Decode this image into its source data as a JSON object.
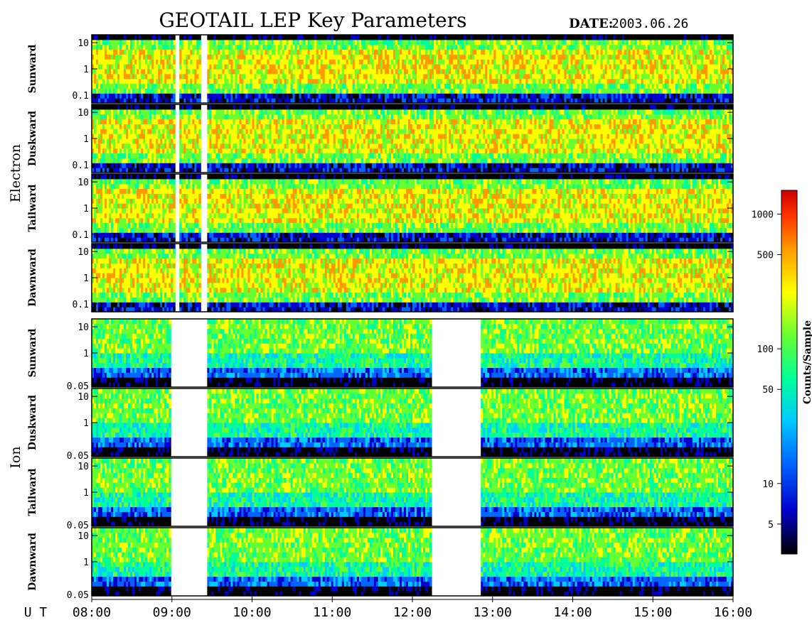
{
  "chart_data": {
    "type": "heatmap",
    "title": "GEOTAIL LEP Key Parameters",
    "date_label": "DATE:",
    "date_value": "2003.06.26",
    "x_axis_label": "U T",
    "x_ticks": [
      "08:00",
      "09:00",
      "10:00",
      "11:00",
      "12:00",
      "13:00",
      "14:00",
      "15:00",
      "16:00"
    ],
    "x_range_hours": [
      8,
      16
    ],
    "colorbar": {
      "label": "Counts/Sample",
      "scale": "log",
      "range": [
        3,
        1500
      ],
      "ticks": [
        5,
        10,
        50,
        100,
        500,
        1000
      ],
      "colors": [
        "#000000",
        "#0000cc",
        "#0066ff",
        "#00ccff",
        "#00ff99",
        "#66ff33",
        "#ffff00",
        "#ff9900",
        "#ff3300",
        "#cc0000"
      ]
    },
    "groups": [
      {
        "name": "Electron",
        "y_ticks": [
          "10",
          "1",
          "0.1"
        ],
        "y_tick_values": [
          10,
          1,
          0.1
        ],
        "y_range": [
          0.05,
          20
        ],
        "panels": [
          "Sunward",
          "Duskward",
          "Tailward",
          "Dawnward"
        ]
      },
      {
        "name": "Ion",
        "y_ticks": [
          "10",
          "1",
          "0.05"
        ],
        "y_tick_values": [
          10,
          1,
          0.05
        ],
        "y_range": [
          0.05,
          20
        ],
        "panels": [
          "Sunward",
          "Duskward",
          "Tailward",
          "Dawnward"
        ]
      }
    ],
    "data_gaps_hours": [
      {
        "group": "Electron",
        "from": 9.05,
        "to": 9.1
      },
      {
        "group": "Electron",
        "from": 9.35,
        "to": 9.45
      },
      {
        "group": "Ion",
        "from": 9.0,
        "to": 9.45
      },
      {
        "group": "Ion",
        "from": 12.25,
        "to": 12.85
      }
    ]
  }
}
